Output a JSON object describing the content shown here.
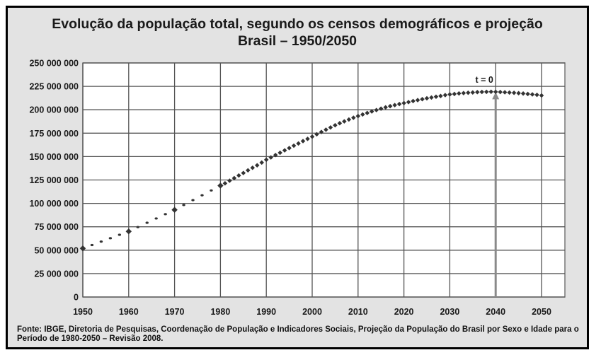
{
  "chart_data": {
    "type": "line",
    "title": "Evolução da população total, segundo os censos demográficos e projeção",
    "subtitle": "Brasil – 1950/2050",
    "xlabel": "",
    "ylabel": "",
    "xlim": [
      1950,
      2055
    ],
    "ylim": [
      0,
      250000000
    ],
    "grid": true,
    "x_ticks": [
      "1950",
      "1960",
      "1970",
      "1980",
      "1990",
      "2000",
      "2010",
      "2020",
      "2030",
      "2040",
      "2050"
    ],
    "y_ticks": [
      "0",
      "25 000 000",
      "50 000 000",
      "75 000 000",
      "100 000 000",
      "125 000 000",
      "150 000 000",
      "175 000 000",
      "200 000 000",
      "225 000 000",
      "250 000 000"
    ],
    "series": [
      {
        "style": "dotted-census",
        "x": [
          1950,
          1960,
          1970,
          1980
        ],
        "y": [
          51900000,
          70100000,
          93100000,
          119000000
        ]
      },
      {
        "style": "dense-projection",
        "x": [
          1980,
          1981,
          1982,
          1983,
          1984,
          1985,
          1986,
          1987,
          1988,
          1989,
          1990,
          1991,
          1992,
          1993,
          1994,
          1995,
          1996,
          1997,
          1998,
          1999,
          2000,
          2001,
          2002,
          2003,
          2004,
          2005,
          2006,
          2007,
          2008,
          2009,
          2010,
          2011,
          2012,
          2013,
          2014,
          2015,
          2016,
          2017,
          2018,
          2019,
          2020,
          2021,
          2022,
          2023,
          2024,
          2025,
          2026,
          2027,
          2028,
          2029,
          2030,
          2031,
          2032,
          2033,
          2034,
          2035,
          2036,
          2037,
          2038,
          2039,
          2040,
          2041,
          2042,
          2043,
          2044,
          2045,
          2046,
          2047,
          2048,
          2049,
          2050
        ],
        "y": [
          118600000,
          121400000,
          124200000,
          127000000,
          129800000,
          132500000,
          135300000,
          138000000,
          140700000,
          143600000,
          146600000,
          149100000,
          151600000,
          154100000,
          156600000,
          159100000,
          161600000,
          164000000,
          166500000,
          168900000,
          171300000,
          173800000,
          176300000,
          178700000,
          181100000,
          183400000,
          185600000,
          187600000,
          189600000,
          191500000,
          193300000,
          195000000,
          196600000,
          198200000,
          199700000,
          201200000,
          202600000,
          203800000,
          205000000,
          206100000,
          207100000,
          208200000,
          209300000,
          210300000,
          211300000,
          212200000,
          213100000,
          213900000,
          214700000,
          215600000,
          216400000,
          216900000,
          217400000,
          217800000,
          218200000,
          218500000,
          218800000,
          219000000,
          219100000,
          219200000,
          219100000,
          218900000,
          218700000,
          218400000,
          218100000,
          217700000,
          217300000,
          216900000,
          216400000,
          215900000,
          215300000
        ]
      }
    ],
    "annotations": [
      {
        "text": "t = 0",
        "x": 2040,
        "arrow": "vertical arrow from 0 up to the curve"
      }
    ],
    "colors": {
      "background": "#e3e3e3",
      "plot": "#ffffff",
      "grid": "#555555",
      "points": "#333333",
      "arrow": "#8a8a8a"
    },
    "source": "Fonte: IBGE, Diretoria de Pesquisas, Coordenação de População e Indicadores Sociais, Projeção da População do Brasil por Sexo e Idade para o Período de 1980-2050 – Revisão 2008."
  }
}
